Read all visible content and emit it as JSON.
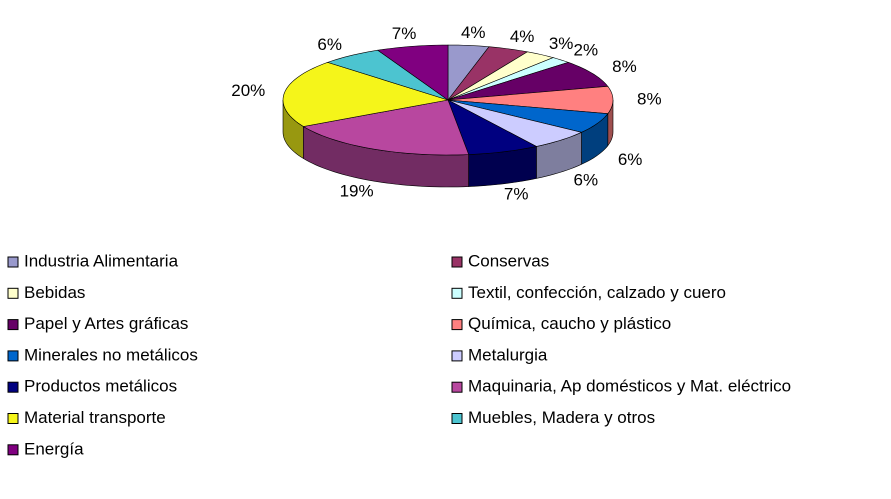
{
  "chart_data": {
    "type": "pie3d",
    "categories": [
      "Industria Alimentaria",
      "Conservas",
      "Bebidas",
      "Textil, confección, calzado y cuero",
      "Papel y Artes gráficas",
      "Química, caucho y plástico",
      "Minerales no metálicos",
      "Metalurgia",
      "Productos metálicos",
      "Maquinaria, Ap domésticos y Mat. eléctrico",
      "Material transporte",
      "Muebles, Madera y otros",
      "Energía"
    ],
    "values": [
      4,
      4,
      3,
      2,
      8,
      8,
      6,
      6,
      7,
      19,
      20,
      6,
      7
    ],
    "value_labels": [
      "4%",
      "4%",
      "3%",
      "2%",
      "8%",
      "8%",
      "6%",
      "6%",
      "7%",
      "19%",
      "20%",
      "6%",
      "7%"
    ],
    "colors": [
      "#9999cc",
      "#993366",
      "#ffffcc",
      "#ccffff",
      "#660066",
      "#ff8080",
      "#0066cc",
      "#ccccff",
      "#000080",
      "#b8479f",
      "#f5f51a",
      "#4cc4d0",
      "#800080"
    ],
    "legend": "bottom"
  }
}
